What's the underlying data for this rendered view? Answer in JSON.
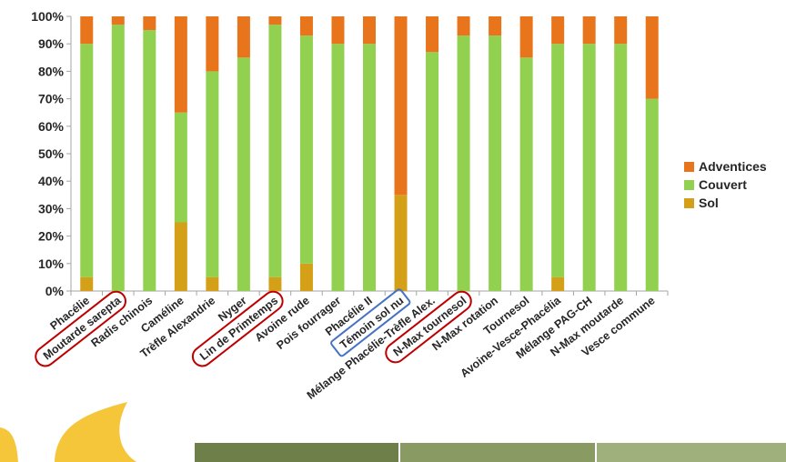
{
  "chart_data": {
    "type": "bar",
    "stacked": true,
    "percent_stacked": true,
    "categories": [
      "Phacélie",
      "Moutarde sarepta",
      "Radis chinois",
      "Caméline",
      "Trèfle Alexandrie",
      "Nyger",
      "Lin de Primtemps",
      "Avoine rude",
      "Pois fourrager",
      "Phacélie II",
      "Témoin sol nu",
      "Mélange Phacélie-Trèfle Alex.",
      "N-Max tournesol",
      "N-Max rotation",
      "Tournesol",
      "Avoine-Vesce-Phacélia",
      "Mélange PAG-CH",
      "N-Max moutarde",
      "Vesce commune"
    ],
    "series": [
      {
        "name": "Sol",
        "color": "#d4a017",
        "values": [
          5,
          0,
          0,
          25,
          5,
          0,
          5,
          10,
          0,
          0,
          35,
          0,
          0,
          0,
          0,
          5,
          0,
          0,
          0
        ]
      },
      {
        "name": "Couvert",
        "color": "#92d050",
        "values": [
          85,
          97,
          95,
          40,
          75,
          85,
          92,
          83,
          90,
          90,
          0,
          87,
          93,
          93,
          85,
          85,
          90,
          90,
          70
        ]
      },
      {
        "name": "Adventices",
        "color": "#e8741c",
        "values": [
          10,
          3,
          5,
          35,
          20,
          15,
          3,
          7,
          10,
          10,
          65,
          13,
          7,
          7,
          15,
          10,
          10,
          10,
          30
        ]
      }
    ],
    "yticks": [
      "0%",
      "10%",
      "20%",
      "30%",
      "40%",
      "50%",
      "60%",
      "70%",
      "80%",
      "90%",
      "100%"
    ],
    "ylim": [
      0,
      100
    ],
    "legend_position": "right",
    "legend_order": [
      "Adventices",
      "Couvert",
      "Sol"
    ],
    "highlighted_red": [
      "Moutarde sarepta",
      "Lin de Primtemps",
      "N-Max tournesol"
    ],
    "highlighted_blue": [
      "Témoin sol nu"
    ],
    "grid": false
  }
}
